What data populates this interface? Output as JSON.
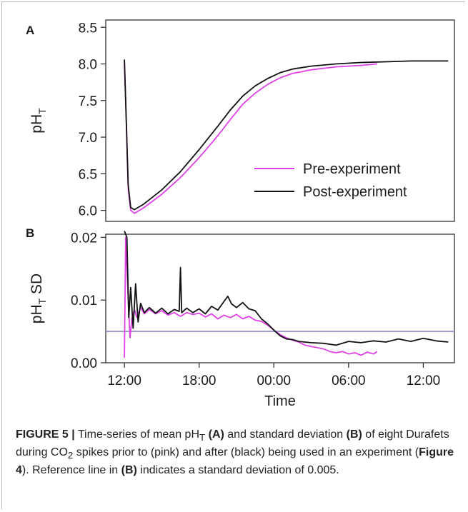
{
  "figure": {
    "panel_labels": [
      "A",
      "B"
    ],
    "caption_label": "FIGURE 5 |",
    "caption_t1": " Time-series of mean pH",
    "caption_sub1": "T",
    "caption_t2": " ",
    "caption_b1": "(A)",
    "caption_t3": " and standard deviation ",
    "caption_b2": "(B)",
    "caption_t4": " of eight Durafets during CO",
    "caption_sub2": "2",
    "caption_t5": " spikes prior to (pink) and after (black) being used in an experiment (",
    "caption_b3": "Figure 4",
    "caption_t6": "). Reference line in ",
    "caption_b4": "(B)",
    "caption_t7": " indicates a standard deviation of 0.005."
  },
  "colors": {
    "pre": "#e040e8",
    "post": "#111111",
    "reference": "#8c8cc8",
    "axis": "#333333"
  },
  "chart_data": [
    {
      "type": "line",
      "panel": "A",
      "ylabel": "pH",
      "ylabel_sub": "T",
      "xlabel": "",
      "x_unit": "hours since 12:00",
      "xlim": [
        -1.5,
        26.5
      ],
      "ylim": [
        5.85,
        8.6
      ],
      "yticks": [
        "6.0",
        "6.5",
        "7.0",
        "7.5",
        "8.0",
        "8.5"
      ],
      "ytick_values": [
        6.0,
        6.5,
        7.0,
        7.5,
        8.0,
        8.5
      ],
      "legend": {
        "position": "bottom-right",
        "entries": [
          "Pre-experiment",
          "Post-experiment"
        ]
      },
      "series": [
        {
          "name": "Pre-experiment",
          "color": "#e040e8",
          "points": [
            [
              0.0,
              8.05
            ],
            [
              0.15,
              7.2
            ],
            [
              0.3,
              6.3
            ],
            [
              0.5,
              6.0
            ],
            [
              0.8,
              5.96
            ],
            [
              1.5,
              6.03
            ],
            [
              3,
              6.22
            ],
            [
              4.5,
              6.45
            ],
            [
              6,
              6.72
            ],
            [
              7.5,
              7.02
            ],
            [
              8.5,
              7.24
            ],
            [
              9.5,
              7.45
            ],
            [
              10.5,
              7.6
            ],
            [
              11.5,
              7.72
            ],
            [
              12.5,
              7.81
            ],
            [
              13.5,
              7.87
            ],
            [
              15,
              7.92
            ],
            [
              17,
              7.96
            ],
            [
              19,
              7.98
            ],
            [
              20.3,
              8.0
            ]
          ]
        },
        {
          "name": "Post-experiment",
          "color": "#111111",
          "points": [
            [
              0.0,
              8.06
            ],
            [
              0.15,
              7.2
            ],
            [
              0.3,
              6.35
            ],
            [
              0.5,
              6.04
            ],
            [
              0.8,
              6.01
            ],
            [
              1.5,
              6.08
            ],
            [
              3,
              6.28
            ],
            [
              4.5,
              6.53
            ],
            [
              6,
              6.83
            ],
            [
              7.5,
              7.15
            ],
            [
              8.5,
              7.37
            ],
            [
              9.5,
              7.56
            ],
            [
              10.5,
              7.7
            ],
            [
              11.5,
              7.8
            ],
            [
              12.5,
              7.88
            ],
            [
              13.5,
              7.93
            ],
            [
              15,
              7.97
            ],
            [
              17,
              8.0
            ],
            [
              19,
              8.02
            ],
            [
              21,
              8.03
            ],
            [
              23,
              8.04
            ],
            [
              26,
              8.04
            ]
          ]
        }
      ]
    },
    {
      "type": "line",
      "panel": "B",
      "ylabel": "pH",
      "ylabel_sub": "T",
      "ylabel_suffix": " SD",
      "xlabel": "Time",
      "x_unit": "hours since 12:00",
      "xlim": [
        -1.5,
        26.5
      ],
      "ylim": [
        0.0,
        0.0205
      ],
      "yticks": [
        "0.00",
        "0.01",
        "0.02"
      ],
      "ytick_values": [
        0.0,
        0.01,
        0.02
      ],
      "xticks": [
        "12:00",
        "18:00",
        "00:00",
        "06:00",
        "12:00"
      ],
      "xtick_values": [
        0,
        6,
        12,
        18,
        24
      ],
      "reference_line": 0.005,
      "series": [
        {
          "name": "Pre-experiment",
          "color": "#e040e8",
          "points": [
            [
              0.0,
              0.0008
            ],
            [
              0.1,
              0.02
            ],
            [
              0.3,
              0.01
            ],
            [
              0.45,
              0.004
            ],
            [
              0.6,
              0.007
            ],
            [
              0.8,
              0.0085
            ],
            [
              1.0,
              0.0072
            ],
            [
              1.3,
              0.0088
            ],
            [
              1.6,
              0.0078
            ],
            [
              2,
              0.0085
            ],
            [
              2.5,
              0.0078
            ],
            [
              3,
              0.0083
            ],
            [
              3.5,
              0.0076
            ],
            [
              4,
              0.008
            ],
            [
              4.5,
              0.0074
            ],
            [
              5,
              0.008
            ],
            [
              5.5,
              0.0077
            ],
            [
              6,
              0.0079
            ],
            [
              6.5,
              0.0073
            ],
            [
              7,
              0.0078
            ],
            [
              7.5,
              0.007
            ],
            [
              8,
              0.0076
            ],
            [
              8.5,
              0.0072
            ],
            [
              9,
              0.0077
            ],
            [
              9.5,
              0.007
            ],
            [
              10,
              0.0074
            ],
            [
              10.5,
              0.0068
            ],
            [
              11,
              0.0066
            ],
            [
              11.5,
              0.006
            ],
            [
              12,
              0.0052
            ],
            [
              12.5,
              0.0045
            ],
            [
              13,
              0.004
            ],
            [
              13.5,
              0.0036
            ],
            [
              14,
              0.0033
            ],
            [
              14.5,
              0.0028
            ],
            [
              15,
              0.0026
            ],
            [
              15.5,
              0.0024
            ],
            [
              16,
              0.0022
            ],
            [
              16.5,
              0.0018
            ],
            [
              17,
              0.0016
            ],
            [
              17.5,
              0.0018
            ],
            [
              18,
              0.0014
            ],
            [
              18.5,
              0.0016
            ],
            [
              19,
              0.0012
            ],
            [
              19.5,
              0.0017
            ],
            [
              20,
              0.0014
            ],
            [
              20.3,
              0.0018
            ]
          ]
        },
        {
          "name": "Post-experiment",
          "color": "#111111",
          "points": [
            [
              0.0,
              0.021
            ],
            [
              0.2,
              0.02
            ],
            [
              0.35,
              0.0072
            ],
            [
              0.5,
              0.012
            ],
            [
              0.7,
              0.0055
            ],
            [
              0.9,
              0.0126
            ],
            [
              1.1,
              0.0065
            ],
            [
              1.3,
              0.0095
            ],
            [
              1.6,
              0.008
            ],
            [
              2,
              0.0088
            ],
            [
              2.5,
              0.0079
            ],
            [
              3,
              0.0087
            ],
            [
              3.5,
              0.0078
            ],
            [
              4.0,
              0.0085
            ],
            [
              4.4,
              0.0082
            ],
            [
              4.5,
              0.0152
            ],
            [
              4.6,
              0.008
            ],
            [
              5,
              0.0087
            ],
            [
              5.5,
              0.008
            ],
            [
              6,
              0.0086
            ],
            [
              6.5,
              0.0078
            ],
            [
              7,
              0.009
            ],
            [
              7.5,
              0.0084
            ],
            [
              8,
              0.0098
            ],
            [
              8.3,
              0.0106
            ],
            [
              8.6,
              0.0094
            ],
            [
              9,
              0.0088
            ],
            [
              9.5,
              0.0096
            ],
            [
              10,
              0.0086
            ],
            [
              10.5,
              0.0083
            ],
            [
              11,
              0.007
            ],
            [
              11.5,
              0.0062
            ],
            [
              12,
              0.0052
            ],
            [
              12.5,
              0.0043
            ],
            [
              13,
              0.0038
            ],
            [
              13.5,
              0.0037
            ],
            [
              14,
              0.0034
            ],
            [
              15,
              0.0032
            ],
            [
              16,
              0.0031
            ],
            [
              17,
              0.0028
            ],
            [
              18,
              0.0034
            ],
            [
              19,
              0.0032
            ],
            [
              20,
              0.0035
            ],
            [
              21,
              0.0033
            ],
            [
              22,
              0.0038
            ],
            [
              23,
              0.0034
            ],
            [
              24,
              0.0039
            ],
            [
              25,
              0.0035
            ],
            [
              26,
              0.0033
            ]
          ]
        }
      ]
    }
  ]
}
